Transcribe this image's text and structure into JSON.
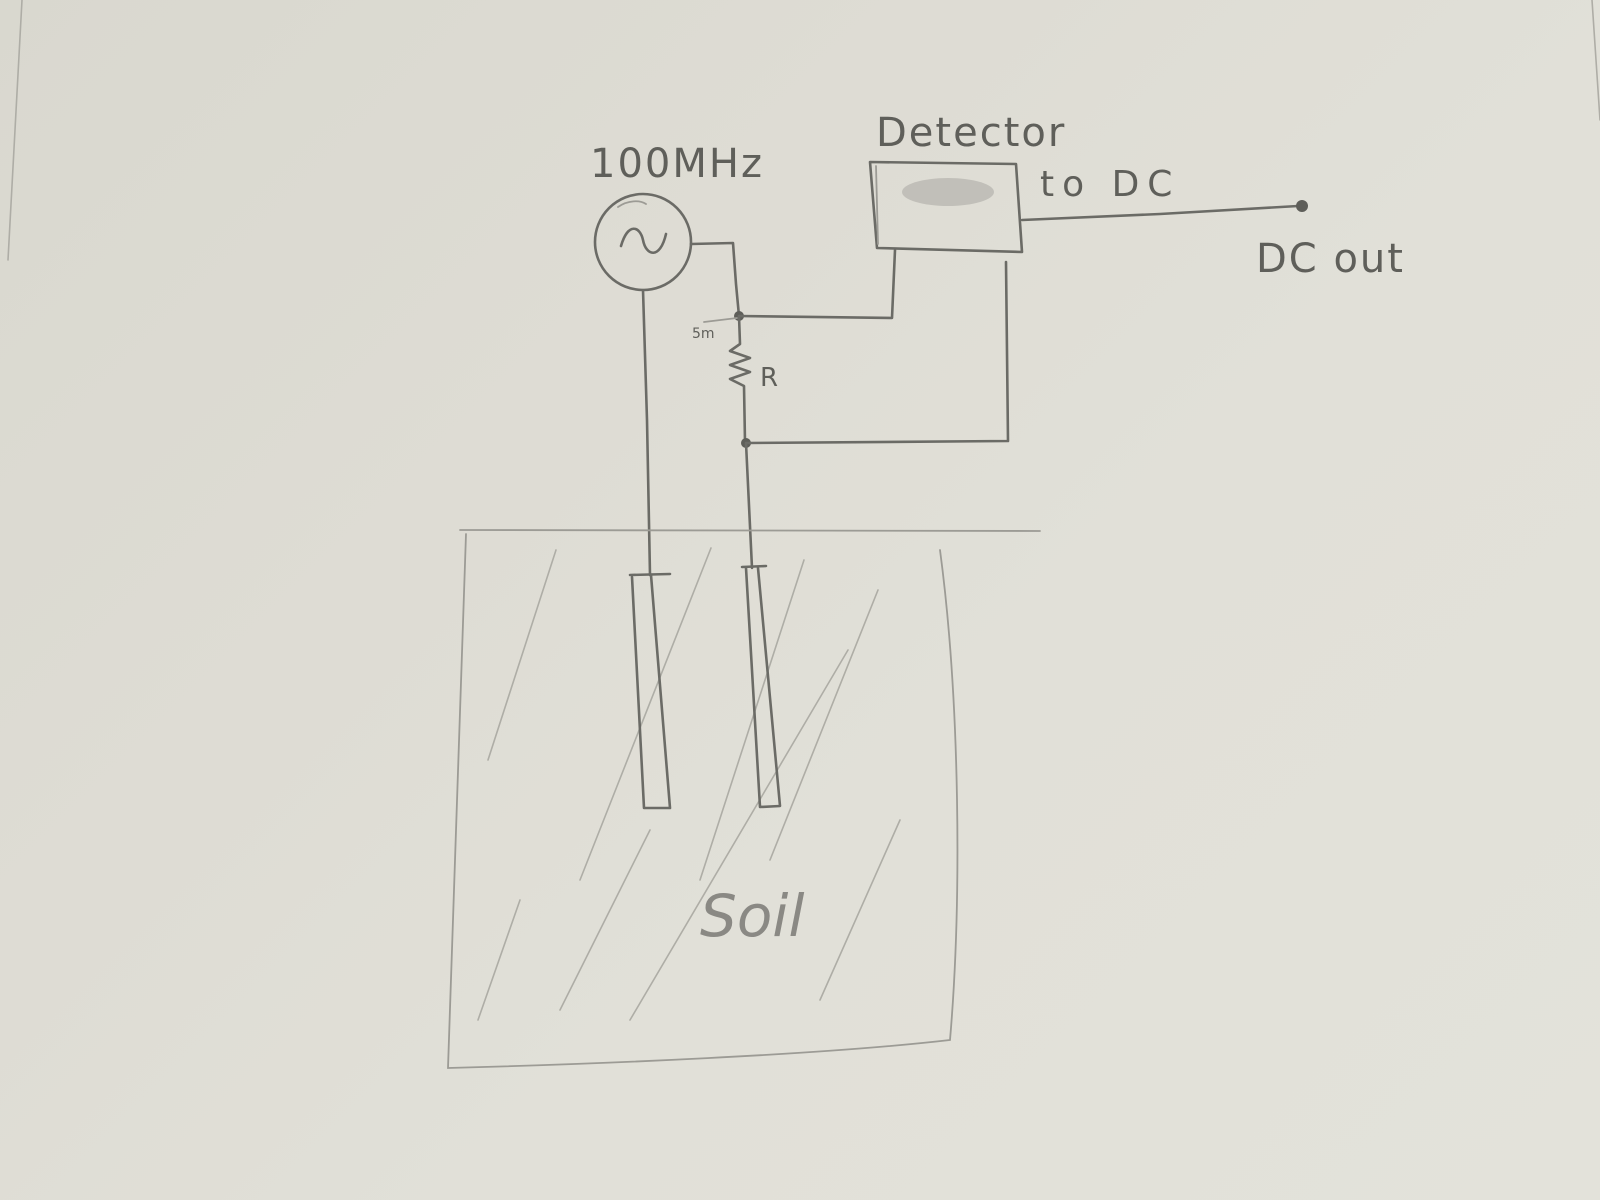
{
  "labels": {
    "frequency": "100MHz",
    "detector": "Detector",
    "to_dc": "to DC",
    "dc_out": "DC out",
    "resistor": "R",
    "resistor_tag": "5m",
    "soil": "Soil"
  },
  "colors": {
    "paper": "#dedcd4",
    "pencil": "#6b6b66"
  },
  "icons": {
    "source": "ac-source-icon",
    "resistor": "resistor-icon",
    "terminal": "output-terminal-icon"
  }
}
